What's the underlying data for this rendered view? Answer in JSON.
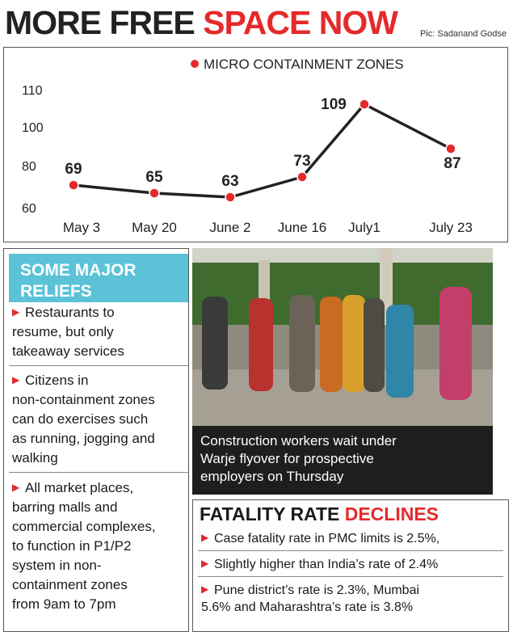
{
  "headline": {
    "part1": "MORE FREE ",
    "part2": "SPACE NOW"
  },
  "credit": "Pic: Sadanand Godse",
  "chart_data": {
    "type": "line",
    "legend": "MICRO CONTAINMENT ZONES",
    "categories": [
      "May 3",
      "May 20",
      "June 2",
      "June 16",
      "July1",
      "July 23"
    ],
    "values": [
      69,
      65,
      63,
      73,
      109,
      87
    ],
    "ytick_labels": [
      "110",
      "100",
      "80",
      "60"
    ],
    "ylim": [
      53,
      113
    ],
    "line_color": "#222222",
    "marker_color": "#e42a2a"
  },
  "reliefs": {
    "title_line1": "SOME MAJOR",
    "title_line2": "RELIEFS",
    "items": [
      [
        "Restaurants to",
        "resume, but only",
        "takeaway services"
      ],
      [
        "Citizens in",
        "non-containment zones",
        "can do exercises such",
        "as running, jogging and",
        "walking"
      ],
      [
        "All market places,",
        "barring malls and",
        "commercial complexes,",
        "to function in P1/P2",
        "system in non-",
        "containment zones",
        "from 9am to 7pm"
      ]
    ]
  },
  "photo_caption": [
    "Construction workers wait under",
    "Warje flyover for prospective",
    "employers on Thursday"
  ],
  "fatality": {
    "title_part1": "FATALITY RATE ",
    "title_part2": "DECLINES",
    "items": [
      [
        "Case fatality rate in PMC limits is 2.5%,"
      ],
      [
        "Slightly higher than India’s rate of 2.4%"
      ],
      [
        "Pune district’s rate is 2.3%, Mumbai",
        "5.6% and Maharashtra’s rate is 3.8%"
      ]
    ]
  }
}
